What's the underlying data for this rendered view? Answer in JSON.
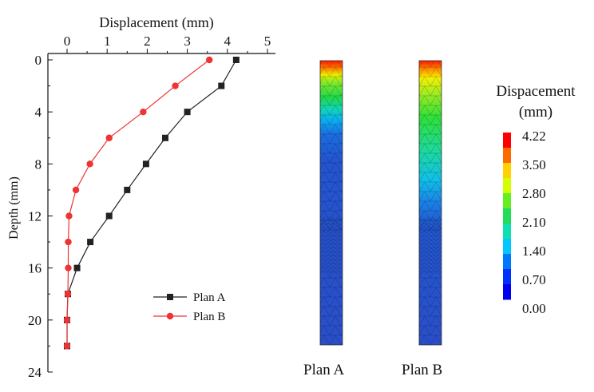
{
  "chart_data": {
    "type": "line",
    "xlabel": "Displacement (mm)",
    "ylabel": "Depth (mm)",
    "xlim": [
      0,
      5
    ],
    "ylim": [
      24,
      0
    ],
    "x_axis_position": "top",
    "x_ticks": [
      "0",
      "1",
      "2",
      "3",
      "4",
      "5"
    ],
    "y_ticks": [
      "0",
      "4",
      "8",
      "12",
      "16",
      "20",
      "24"
    ],
    "grid": false,
    "legend_position": "bottom-right",
    "series": [
      {
        "name": "Plan A",
        "marker": "square",
        "color": "#222222",
        "depth": [
          0,
          2,
          4,
          6,
          8,
          10,
          12,
          14,
          16,
          18,
          20,
          22
        ],
        "displacement": [
          4.22,
          3.85,
          3.0,
          2.45,
          1.97,
          1.5,
          1.05,
          0.58,
          0.25,
          0.02,
          0.0,
          0.0
        ]
      },
      {
        "name": "Plan B",
        "marker": "circle",
        "color": "#ee3333",
        "depth": [
          0,
          2,
          4,
          6,
          8,
          10,
          12,
          14,
          16,
          18,
          20,
          22
        ],
        "displacement": [
          3.55,
          2.7,
          1.9,
          1.05,
          0.57,
          0.22,
          0.05,
          0.03,
          0.03,
          0.02,
          0.0,
          0.0
        ]
      }
    ]
  },
  "contour": {
    "title_line1": "Dispacement",
    "title_line2": "(mm)",
    "colorbar_labels": [
      "4.22",
      "3.50",
      "2.80",
      "2.10",
      "1.40",
      "0.70",
      "0.00"
    ],
    "colorbar_colors": [
      "#ff0000",
      "#ff6a00",
      "#ffd200",
      "#d4ff00",
      "#66ee22",
      "#22dd55",
      "#10e0b0",
      "#00c8ff",
      "#0077ff",
      "#0030ff",
      "#0000ee"
    ],
    "panels": [
      {
        "label": "Plan A",
        "transition_fraction": 0.28
      },
      {
        "label": "Plan B",
        "transition_fraction": 0.52
      }
    ]
  }
}
